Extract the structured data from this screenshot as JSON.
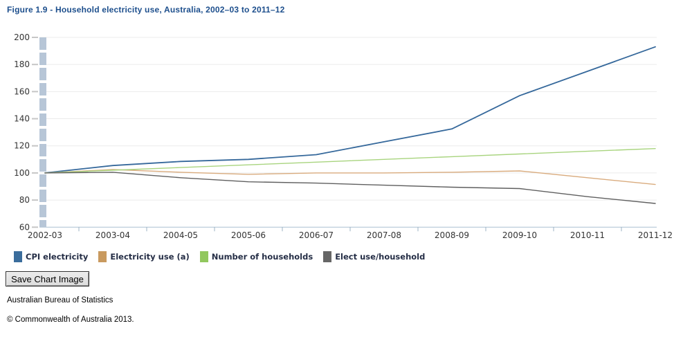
{
  "title": "Figure 1.9 - Household electricity use, Australia, 2002–03 to 2011–12",
  "buttons": {
    "save_chart": "Save Chart Image"
  },
  "footer": {
    "source": "Australian Bureau of Statistics",
    "copyright": "© Commonwealth of Australia 2013."
  },
  "colors": {
    "title_text": "#1c4e8c",
    "legend_text": "#252e46",
    "axis_text": "#333333",
    "gridline": "#ebebeb",
    "axis_line": "#a9bfd0",
    "axis_bar": "#b7c6d7",
    "tick": "#9db3c4",
    "label_dash": "#c6c6c6"
  },
  "chart_data": {
    "type": "line",
    "title": "Figure 1.9 - Household electricity use, Australia, 2002–03 to 2011–12",
    "categories": [
      "2002-03",
      "2003-04",
      "2004-05",
      "2005-06",
      "2006-07",
      "2007-08",
      "2008-09",
      "2009-10",
      "2010-11",
      "2011-12"
    ],
    "series": [
      {
        "name": "CPI electricity",
        "slug": "cpi-electricity",
        "color": "#3b6d9c",
        "line_color": "#35689b",
        "line_width": 1.8,
        "values": [
          100,
          105.5,
          108.5,
          110,
          113.5,
          123,
          132.5,
          157,
          175,
          193
        ]
      },
      {
        "name": "Electricity use (a)",
        "slug": "electricity-use",
        "color": "#c99a5f",
        "line_color": "#d9ab7d",
        "line_width": 1.4,
        "values": [
          100,
          102.5,
          100.5,
          99,
          100,
          100,
          100.5,
          101.5,
          96.5,
          91.5
        ]
      },
      {
        "name": "Number of households",
        "slug": "number-of-households",
        "color": "#92c75e",
        "line_color": "#a8d47e",
        "line_width": 1.4,
        "values": [
          100,
          102,
          104,
          106,
          108,
          110,
          112,
          114,
          116,
          118
        ]
      },
      {
        "name": "Elect use/household",
        "slug": "elect-use-household",
        "color": "#666666",
        "line_color": "#5f5f5f",
        "line_width": 1.4,
        "values": [
          100,
          100.5,
          96.5,
          93.5,
          92.5,
          91,
          89.5,
          88.5,
          82.5,
          77.5
        ]
      }
    ],
    "ylim": [
      60,
      200
    ],
    "ytick_step": 20,
    "ytick_labels": [
      "60",
      "80",
      "100",
      "120",
      "140",
      "160",
      "180",
      "200"
    ],
    "grid": "horizontal",
    "legend_position": "bottom"
  }
}
